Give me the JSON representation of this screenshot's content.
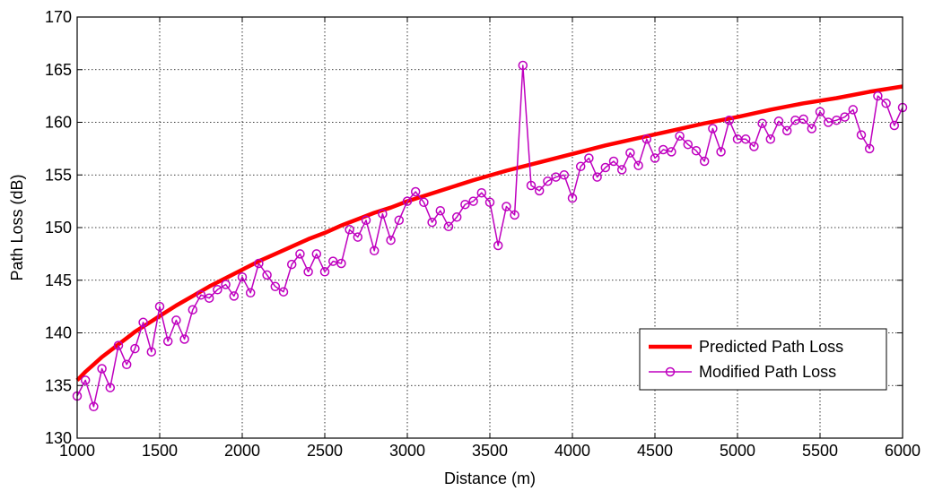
{
  "chart_data": {
    "type": "line",
    "title": "",
    "xlabel": "Distance (m)",
    "ylabel": "Path Loss (dB)",
    "xlim": [
      1000,
      6000
    ],
    "ylim": [
      130,
      170
    ],
    "xticks": [
      1000,
      1500,
      2000,
      2500,
      3000,
      3500,
      4000,
      4500,
      5000,
      5500,
      6000
    ],
    "yticks": [
      130,
      135,
      140,
      145,
      150,
      155,
      160,
      165,
      170
    ],
    "grid": true,
    "legend_position": "bottom-right",
    "series": [
      {
        "name": "Predicted Path Loss",
        "color": "#ff0000",
        "style": "thick-line",
        "x": [
          1000,
          1050,
          1100,
          1150,
          1200,
          1250,
          1300,
          1350,
          1400,
          1450,
          1500,
          1600,
          1700,
          1800,
          1900,
          2000,
          2100,
          2200,
          2300,
          2400,
          2500,
          2600,
          2700,
          2800,
          2900,
          3000,
          3200,
          3400,
          3600,
          3800,
          4000,
          4200,
          4400,
          4600,
          4800,
          5000,
          5200,
          5400,
          5600,
          5800,
          6000
        ],
        "y": [
          135.5,
          136.3,
          137.0,
          137.7,
          138.3,
          138.9,
          139.5,
          140.1,
          140.6,
          141.1,
          141.6,
          142.6,
          143.5,
          144.4,
          145.2,
          146.0,
          146.8,
          147.5,
          148.2,
          148.9,
          149.5,
          150.2,
          150.8,
          151.4,
          151.9,
          152.5,
          153.5,
          154.5,
          155.4,
          156.2,
          157.0,
          157.8,
          158.5,
          159.2,
          159.9,
          160.5,
          161.2,
          161.8,
          162.3,
          162.9,
          163.4
        ]
      },
      {
        "name": "Modified Path Loss",
        "color": "#bf00bf",
        "style": "line-circle-markers",
        "x": [
          1000,
          1050,
          1100,
          1150,
          1200,
          1250,
          1300,
          1350,
          1400,
          1450,
          1500,
          1550,
          1600,
          1650,
          1700,
          1750,
          1800,
          1850,
          1900,
          1950,
          2000,
          2050,
          2100,
          2150,
          2200,
          2250,
          2300,
          2350,
          2400,
          2450,
          2500,
          2550,
          2600,
          2650,
          2700,
          2750,
          2800,
          2850,
          2900,
          2950,
          3000,
          3050,
          3100,
          3150,
          3200,
          3250,
          3300,
          3350,
          3400,
          3450,
          3500,
          3550,
          3600,
          3650,
          3700,
          3750,
          3800,
          3850,
          3900,
          3950,
          4000,
          4050,
          4100,
          4150,
          4200,
          4250,
          4300,
          4350,
          4400,
          4450,
          4500,
          4550,
          4600,
          4650,
          4700,
          4750,
          4800,
          4850,
          4900,
          4950,
          5000,
          5050,
          5100,
          5150,
          5200,
          5250,
          5300,
          5350,
          5400,
          5450,
          5500,
          5550,
          5600,
          5650,
          5700,
          5750,
          5800,
          5850,
          5900,
          5950,
          6000
        ],
        "y": [
          134.0,
          135.5,
          133.0,
          136.6,
          134.8,
          138.8,
          137.0,
          138.5,
          141.0,
          138.2,
          142.5,
          139.2,
          141.2,
          139.4,
          142.2,
          143.6,
          143.3,
          144.1,
          144.6,
          143.5,
          145.3,
          143.8,
          146.6,
          145.5,
          144.4,
          143.9,
          146.5,
          147.5,
          145.8,
          147.5,
          145.8,
          146.8,
          146.6,
          149.8,
          149.1,
          150.7,
          147.8,
          151.3,
          148.8,
          150.7,
          152.5,
          153.4,
          152.4,
          150.5,
          151.6,
          150.1,
          151.0,
          152.2,
          152.5,
          153.3,
          152.4,
          148.3,
          152.0,
          151.2,
          165.4,
          154.0,
          153.5,
          154.4,
          154.8,
          155.0,
          152.8,
          155.8,
          156.6,
          154.8,
          155.7,
          156.3,
          155.5,
          157.1,
          155.9,
          158.4,
          156.6,
          157.4,
          157.2,
          158.7,
          157.9,
          157.3,
          156.3,
          159.4,
          157.2,
          160.2,
          158.4,
          158.4,
          157.7,
          159.9,
          158.4,
          160.1,
          159.2,
          160.2,
          160.3,
          159.4,
          161.0,
          160.0,
          160.2,
          160.5,
          161.2,
          158.8,
          157.5,
          162.5,
          161.8,
          159.7,
          161.4
        ]
      }
    ]
  }
}
